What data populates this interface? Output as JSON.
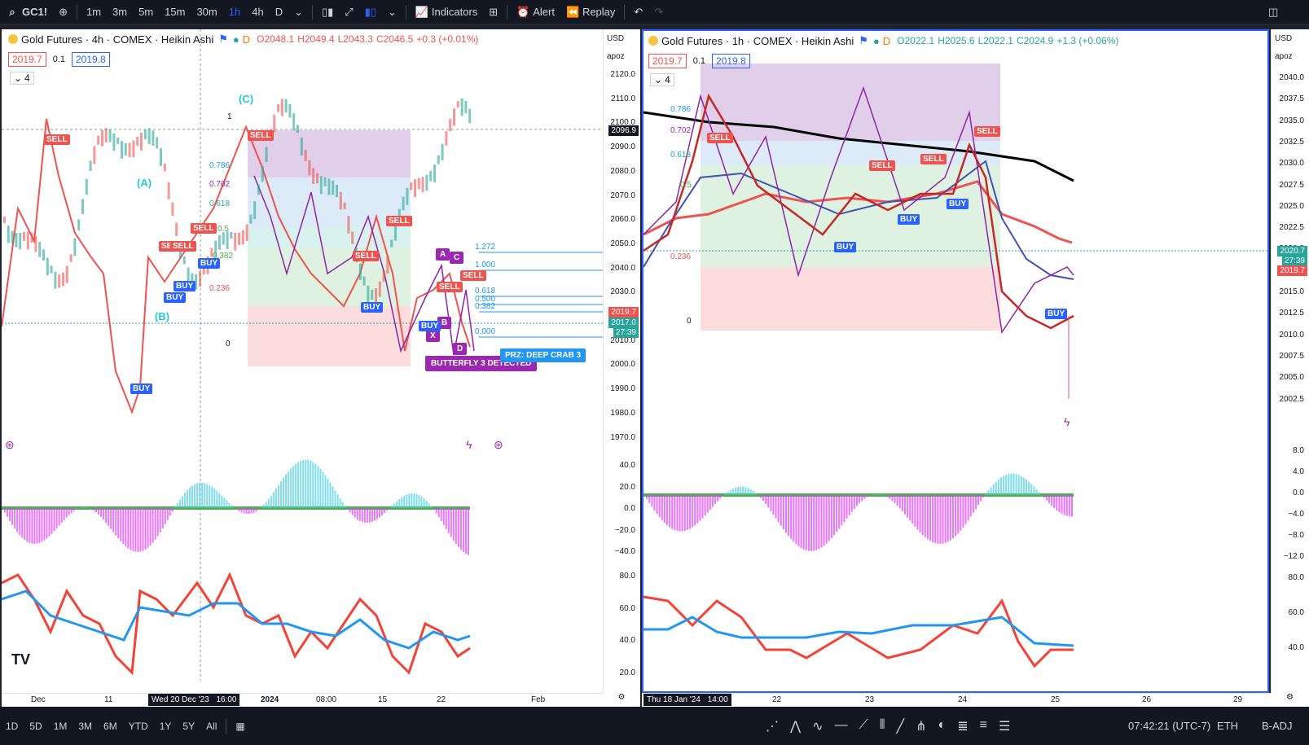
{
  "toolbar": {
    "symbol": "GC1!",
    "intervals": [
      "1m",
      "3m",
      "5m",
      "15m",
      "30m",
      "1h",
      "4h",
      "D"
    ],
    "active_interval": "1h",
    "indicators_label": "Indicators",
    "alert_label": "Alert",
    "replay_label": "Replay"
  },
  "left_chart": {
    "title": "Gold Futures · 4h · COMEX · Heikin Ashi",
    "badge": "D",
    "ohlc": {
      "o": "O2048.1",
      "h": "H2049.4",
      "l": "L2043.3",
      "c": "C2046.5",
      "chg": "+0.3 (+0.01%)"
    },
    "bid": "2019.7",
    "spread": "0.1",
    "ask": "2019.8",
    "layers": "4",
    "currency": "USD",
    "scale_mode": "apoz",
    "price_ticks": [
      "2120.0",
      "2110.0",
      "2100.0",
      "2090.0",
      "2080.0",
      "2070.0",
      "2060.0",
      "2050.0",
      "2040.0",
      "2030.0",
      "2020.0",
      "2010.0",
      "2000.0",
      "1990.0",
      "1980.0",
      "1970.0"
    ],
    "last_price": "2019.7",
    "close_price": "2017.0",
    "countdown": "27:39",
    "crosshair_price": "2096.9",
    "osc_ticks": [
      "40.0",
      "20.0",
      "0.0",
      "−20.0",
      "−40.0"
    ],
    "rsi_ticks": [
      "80.0",
      "60.0",
      "40.0",
      "20.0"
    ],
    "time_ticks": [
      "Dec",
      "11",
      "Wed 20 Dec '23",
      "16:00",
      "2024",
      "08:00",
      "15",
      "22",
      "Feb"
    ],
    "waves": [
      "(A)",
      "(B)",
      "(C)"
    ],
    "fib_levels": [
      "1",
      "0.786",
      "0.702",
      "0.618",
      "0.5",
      "0.382",
      "0.236",
      "0"
    ],
    "xabcd_levels": [
      "1.272",
      "1.000",
      "0.618",
      "0.500",
      "0.382",
      "0.000"
    ],
    "pattern_points": [
      "A",
      "C",
      "B",
      "X",
      "D"
    ],
    "butterfly_label": "BUTTERFLY 3 DETECTED",
    "prz_label": "PRZ: DEEP CRAB 3",
    "sell_labels": [
      "SELL",
      "SELL",
      "SELL",
      "SELL",
      "SELL",
      "SELL",
      "SELL",
      "SELL",
      "SELL"
    ],
    "buy_labels": [
      "BUY",
      "BUY",
      "BUY",
      "BUY",
      "BUY",
      "BUY"
    ]
  },
  "right_chart": {
    "title": "Gold Futures · 1h · COMEX · Heikin Ashi",
    "badge": "D",
    "ohlc": {
      "o": "O2022.1",
      "h": "H2025.6",
      "l": "L2022.1",
      "c": "C2024.9",
      "chg": "+1.3 (+0.06%)"
    },
    "bid": "2019.7",
    "spread": "0.1",
    "ask": "2019.8",
    "layers": "4",
    "currency": "USD",
    "scale_mode": "apoz",
    "price_ticks": [
      "2040.0",
      "2037.5",
      "2035.0",
      "2032.5",
      "2030.0",
      "2027.5",
      "2025.0",
      "2022.5",
      "2020.0",
      "2017.5",
      "2015.0",
      "2012.5",
      "2010.0",
      "2007.5",
      "2005.0",
      "2002.5"
    ],
    "last_price": "2020.7",
    "countdown": "27:39",
    "bid_price": "2019.7",
    "osc_ticks": [
      "8.0",
      "4.0",
      "0.0",
      "−4.0",
      "−8.0",
      "−12.0"
    ],
    "rsi_ticks": [
      "80.0",
      "60.0",
      "40.0"
    ],
    "time_ticks": [
      "Thu 18 Jan '24",
      "14:00",
      "22",
      "23",
      "24",
      "25",
      "26",
      "29"
    ],
    "fib_levels": [
      "0.786",
      "0.702",
      "0.618",
      "0.5",
      "0.236",
      "0"
    ],
    "sell_labels": [
      "SELL",
      "SELL",
      "SELL",
      "SELL"
    ],
    "buy_labels": [
      "BUY",
      "BUY",
      "BUY",
      "BUY"
    ]
  },
  "bottom": {
    "ranges": [
      "1D",
      "5D",
      "1M",
      "3M",
      "6M",
      "YTD",
      "1Y",
      "5Y",
      "All"
    ],
    "clock": "07:42:21 (UTC-7)",
    "session": "ETH",
    "adjust": "B-ADJ"
  },
  "colors": {
    "up": "#26a69a",
    "down": "#ef5350",
    "accent": "#2962ff",
    "pattern": "#9c27b0",
    "fib_top": "#9c6bb5"
  }
}
